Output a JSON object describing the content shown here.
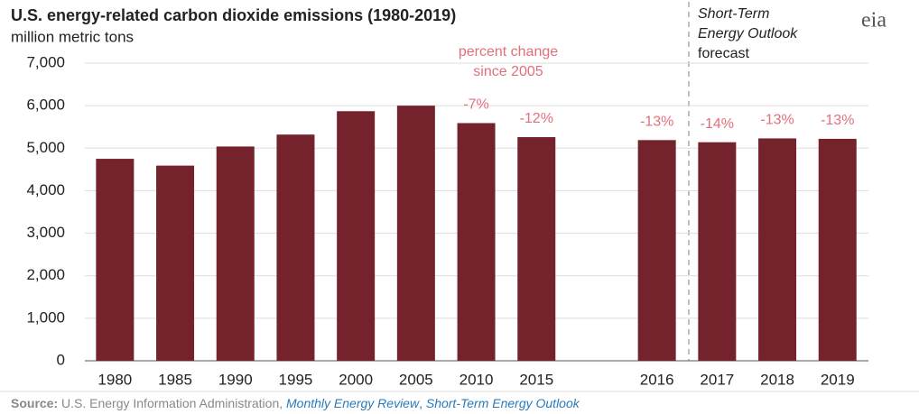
{
  "chart_data": {
    "type": "bar",
    "title": "U.S. energy-related carbon dioxide emissions (1980-2019)",
    "subtitle": "million metric tons",
    "categories": [
      "1980",
      "1985",
      "1990",
      "1995",
      "2000",
      "2005",
      "2010",
      "2015",
      null,
      "2016",
      "2017",
      "2018",
      "2019"
    ],
    "values": [
      4750,
      4590,
      5040,
      5320,
      5870,
      6000,
      5590,
      5260,
      null,
      5190,
      5140,
      5230,
      5220
    ],
    "percent_change_labels": [
      null,
      null,
      null,
      null,
      null,
      null,
      "-7%",
      "-12%",
      null,
      "-13%",
      "-14%",
      "-13%",
      "-13%"
    ],
    "color": "#74222b",
    "ylim": [
      0,
      7000
    ],
    "yticks": [
      0,
      {
        "value": 1000,
        "label": "1,000"
      },
      {
        "value": 2000,
        "label": "2,000"
      },
      {
        "value": 3000,
        "label": "3,000"
      },
      {
        "value": 4000,
        "label": "4,000"
      },
      {
        "value": 5000,
        "label": "5,000"
      },
      {
        "value": 6000,
        "label": "6,000"
      },
      {
        "value": 7000,
        "label": "7,000"
      }
    ],
    "grid": true,
    "annotations": {
      "percent_change": [
        "percent change",
        "since 2005"
      ],
      "forecast": [
        "Short-Term",
        "Energy Outlook",
        "forecast"
      ]
    },
    "logo": "eia",
    "source": {
      "label": "Source:",
      "agency": "U.S. Energy Information Administration,",
      "links": [
        "Monthly Energy Review",
        "Short-Term Energy Outlook"
      ],
      "separator": ","
    }
  }
}
